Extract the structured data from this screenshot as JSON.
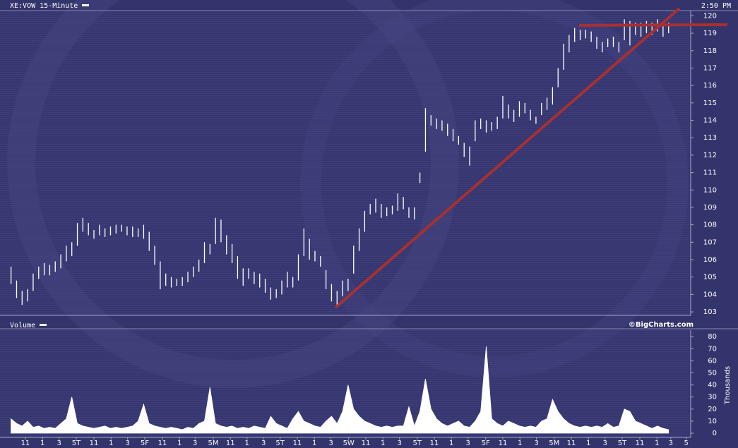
{
  "chart_data": [
    {
      "type": "hilo",
      "title": "XE:VOW 15-Minute",
      "timestamp": "2:50 PM",
      "source": "©BigCharts.com",
      "color": "#ffffff",
      "xlim": [
        -2,
        123
      ],
      "ylim": [
        102.8,
        120.3
      ],
      "yticks": [
        103,
        104,
        105,
        106,
        107,
        108,
        109,
        110,
        111,
        112,
        113,
        114,
        115,
        116,
        117,
        118,
        119,
        120
      ],
      "high": [
        105.6,
        104.8,
        104.2,
        104.3,
        105.2,
        105.6,
        105.8,
        105.7,
        105.9,
        106.3,
        106.8,
        107.0,
        108.1,
        108.4,
        108.1,
        107.7,
        108.0,
        107.8,
        107.9,
        108.0,
        108.0,
        107.9,
        107.9,
        107.8,
        108.0,
        107.6,
        106.8,
        105.9,
        105.2,
        105.0,
        104.9,
        105.0,
        105.3,
        105.6,
        106.0,
        107.0,
        106.9,
        108.4,
        108.3,
        107.4,
        106.9,
        106.2,
        105.5,
        105.5,
        105.3,
        105.2,
        104.9,
        104.4,
        104.3,
        104.8,
        105.3,
        105.0,
        106.3,
        107.8,
        107.2,
        106.5,
        106.2,
        105.4,
        104.6,
        104.2,
        104.8,
        104.9,
        106.8,
        107.8,
        108.8,
        109.2,
        109.5,
        109.2,
        109.0,
        109.1,
        109.8,
        109.6,
        109.0,
        109.0,
        111.0,
        114.7,
        114.3,
        114.1,
        114.0,
        113.8,
        113.5,
        113.1,
        112.7,
        112.5,
        114.0,
        114.1,
        114.0,
        113.9,
        114.2,
        115.4,
        114.9,
        114.6,
        115.1,
        115.0,
        114.6,
        114.2,
        115.0,
        115.3,
        115.9,
        117.0,
        118.4,
        118.9,
        119.3,
        119.2,
        119.2,
        119.1,
        118.8,
        118.5,
        118.7,
        118.8,
        118.5,
        119.8,
        119.7,
        119.6,
        119.6,
        119.7,
        119.6,
        119.8,
        119.7,
        119.6
      ],
      "low": [
        104.6,
        103.8,
        103.4,
        103.6,
        104.2,
        104.9,
        105.1,
        105.1,
        105.3,
        105.5,
        105.9,
        106.2,
        106.8,
        107.6,
        107.4,
        107.2,
        107.4,
        107.3,
        107.4,
        107.5,
        107.6,
        107.4,
        107.3,
        107.3,
        107.2,
        106.5,
        105.7,
        104.3,
        104.5,
        104.4,
        104.5,
        104.5,
        104.7,
        105.0,
        105.3,
        105.8,
        106.3,
        106.9,
        107.0,
        106.3,
        105.8,
        104.9,
        104.5,
        104.9,
        104.6,
        104.4,
        104.1,
        103.7,
        103.8,
        104.0,
        104.4,
        104.4,
        104.8,
        106.2,
        106.0,
        105.9,
        105.6,
        104.3,
        103.6,
        103.3,
        103.9,
        104.2,
        105.2,
        106.5,
        107.6,
        108.6,
        108.7,
        108.4,
        108.5,
        108.6,
        108.8,
        108.9,
        108.4,
        108.3,
        110.4,
        112.2,
        113.7,
        113.5,
        113.4,
        113.1,
        112.8,
        112.6,
        111.9,
        111.4,
        112.8,
        113.5,
        113.3,
        113.4,
        113.5,
        114.1,
        114.1,
        113.9,
        114.2,
        114.4,
        114.0,
        113.8,
        114.3,
        114.6,
        114.9,
        115.9,
        116.9,
        117.9,
        118.5,
        118.6,
        118.7,
        118.5,
        118.1,
        117.9,
        118.2,
        118.2,
        117.9,
        118.6,
        118.3,
        118.9,
        118.8,
        119.0,
        118.9,
        119.1,
        118.8,
        119.0
      ]
    },
    {
      "type": "area",
      "title": "Volume",
      "y_label": "Thousands",
      "color": "#ffffff",
      "xlim": [
        -2,
        123
      ],
      "ylim": [
        -3.5,
        85.4
      ],
      "yticks": [
        0,
        10,
        20,
        30,
        40,
        50,
        60,
        70,
        80
      ],
      "xticks": [
        {
          "value": 2.6,
          "label": "11"
        },
        {
          "value": 5.7,
          "label": "1"
        },
        {
          "value": 8.7,
          "label": "3"
        },
        {
          "value": 11.8,
          "label": "5T"
        },
        {
          "value": 15,
          "label": "11"
        },
        {
          "value": 18.1,
          "label": "1"
        },
        {
          "value": 21.1,
          "label": "3"
        },
        {
          "value": 24.2,
          "label": "5F"
        },
        {
          "value": 27.4,
          "label": "11"
        },
        {
          "value": 30.5,
          "label": "1"
        },
        {
          "value": 33.3,
          "label": "3"
        },
        {
          "value": 36.6,
          "label": "5M"
        },
        {
          "value": 39.7,
          "label": "11"
        },
        {
          "value": 42.7,
          "label": "1"
        },
        {
          "value": 45.7,
          "label": "3"
        },
        {
          "value": 48.7,
          "label": "5T"
        },
        {
          "value": 51.8,
          "label": "11"
        },
        {
          "value": 54.9,
          "label": "1"
        },
        {
          "value": 57.9,
          "label": "3"
        },
        {
          "value": 61.1,
          "label": "5W"
        },
        {
          "value": 64.2,
          "label": "11"
        },
        {
          "value": 67.3,
          "label": "1"
        },
        {
          "value": 70.3,
          "label": "3"
        },
        {
          "value": 73.5,
          "label": "5T"
        },
        {
          "value": 76.6,
          "label": "11"
        },
        {
          "value": 79.7,
          "label": "1"
        },
        {
          "value": 82.7,
          "label": "3"
        },
        {
          "value": 85.9,
          "label": "5F"
        },
        {
          "value": 89,
          "label": "11"
        },
        {
          "value": 92.1,
          "label": "1"
        },
        {
          "value": 95.1,
          "label": "3"
        },
        {
          "value": 98.3,
          "label": "5M"
        },
        {
          "value": 101.4,
          "label": "11"
        },
        {
          "value": 104.5,
          "label": "1"
        },
        {
          "value": 107.5,
          "label": "3"
        },
        {
          "value": 110.6,
          "label": "5T"
        },
        {
          "value": 113.8,
          "label": "11"
        },
        {
          "value": 116.9,
          "label": "1"
        },
        {
          "value": 119.4,
          "label": "3"
        },
        {
          "value": 122.2,
          "label": "5"
        }
      ],
      "values": [
        12,
        8,
        6,
        10,
        5,
        6,
        4,
        5,
        4,
        8,
        12,
        30,
        8,
        6,
        5,
        4,
        5,
        6,
        4,
        5,
        4,
        5,
        6,
        10,
        24,
        8,
        6,
        5,
        4,
        5,
        4,
        3,
        5,
        4,
        8,
        10,
        38,
        8,
        6,
        5,
        6,
        4,
        5,
        4,
        6,
        5,
        4,
        14,
        8,
        6,
        4,
        12,
        18,
        10,
        8,
        6,
        5,
        10,
        14,
        8,
        18,
        40,
        20,
        14,
        10,
        8,
        6,
        5,
        6,
        5,
        6,
        6,
        22,
        6,
        18,
        45,
        20,
        12,
        8,
        6,
        8,
        10,
        6,
        5,
        10,
        18,
        72,
        12,
        8,
        6,
        10,
        8,
        6,
        5,
        6,
        5,
        10,
        12,
        28,
        18,
        12,
        8,
        6,
        5,
        6,
        5,
        6,
        5,
        8,
        5,
        6,
        20,
        18,
        10,
        8,
        6,
        4,
        6,
        4,
        3
      ]
    }
  ]
}
